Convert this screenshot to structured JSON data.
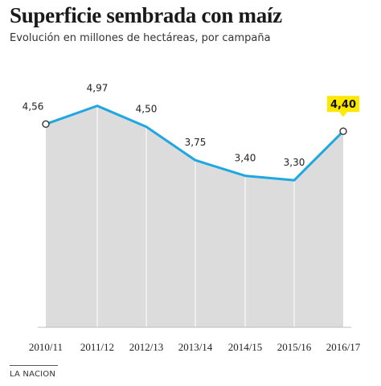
{
  "header": {
    "title": "Superficie sembrada con maíz",
    "subtitle": "Evolución en millones de hectáreas, por campaña"
  },
  "source": "LA NACION",
  "colors": {
    "line": "#1ea7e1",
    "area": "#dcdcdc",
    "highlight": "#ffe800",
    "gridline": "#ffffff"
  },
  "chart_data": {
    "type": "area",
    "categories": [
      "2010/11",
      "2011/12",
      "2012/13",
      "2013/14",
      "2014/15",
      "2015/16",
      "2016/17"
    ],
    "values": [
      4.56,
      4.97,
      4.5,
      3.75,
      3.4,
      3.3,
      4.4
    ],
    "value_labels": [
      "4,56",
      "4,97",
      "4,50",
      "3,75",
      "3,40",
      "3,30",
      "4,40"
    ],
    "highlight_index": 6,
    "endpoint_markers": true,
    "ylim": [
      0,
      5.3
    ],
    "grid": "vertical"
  }
}
